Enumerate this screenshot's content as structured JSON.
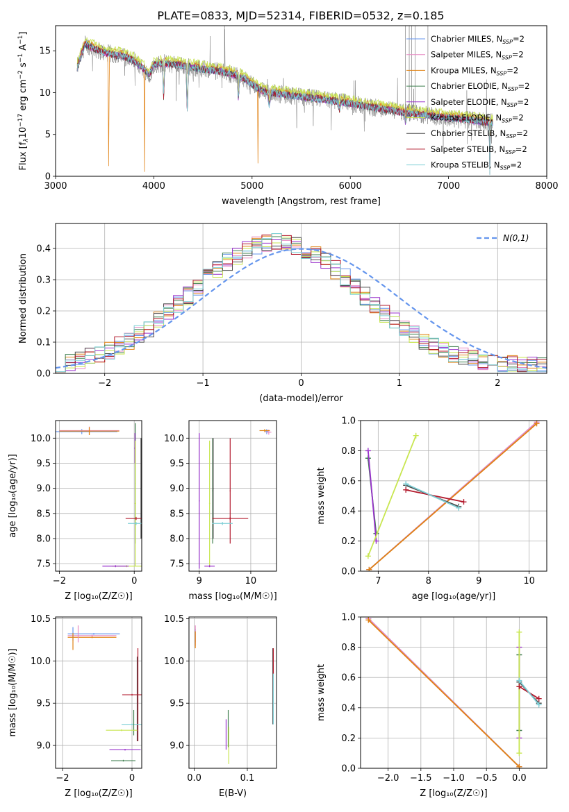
{
  "title": "PLATE=0833, MJD=52314, FIBERID=0532, z=0.185",
  "colors": {
    "Chabrier MILES": "#6495ed",
    "Salpeter MILES": "#e78ac3",
    "Kroupa MILES": "#e08214",
    "Chabrier ELODIE": "#3f7f4f",
    "Salpeter ELODIE": "#9932cc",
    "Kroupa ELODIE": "#c8e650",
    "Chabrier STELIB": "#4d4d4d",
    "Salpeter STELIB": "#b2182b",
    "Kroupa STELIB": "#7ecfd6",
    "observed": "#808080",
    "normal": "#6495ed"
  },
  "chart_data": [
    {
      "id": "spectrum",
      "type": "line",
      "xlabel": "wavelength [Angstrom, rest frame]",
      "ylabel_parts": [
        "Flux [f",
        "λ",
        "10",
        "−17",
        " erg cm",
        "−2",
        " s",
        "−1",
        " A",
        "−1",
        "]"
      ],
      "xlim": [
        3000,
        8000
      ],
      "ylim": [
        0,
        18
      ],
      "xticks": [
        3000,
        4000,
        5000,
        6000,
        7000,
        8000
      ],
      "yticks": [
        0,
        5,
        10,
        15
      ],
      "legend_position": "top-right",
      "legend": [
        {
          "name": "Chabrier MILES",
          "label": "Chabrier MILES, N",
          "sub": "SSP",
          "suffix": "=2"
        },
        {
          "name": "Salpeter MILES",
          "label": "Salpeter MILES, N",
          "sub": "SSP",
          "suffix": "=2"
        },
        {
          "name": "Kroupa MILES",
          "label": "Kroupa MILES, N",
          "sub": "SSP",
          "suffix": "=2"
        },
        {
          "name": "Chabrier ELODIE",
          "label": "Chabrier ELODIE, N",
          "sub": "SSP",
          "suffix": "=2"
        },
        {
          "name": "Salpeter ELODIE",
          "label": "Salpeter ELODIE, N",
          "sub": "SSP",
          "suffix": "=2"
        },
        {
          "name": "Kroupa ELODIE",
          "label": "Kroupa ELODIE, N",
          "sub": "SSP",
          "suffix": "=2"
        },
        {
          "name": "Chabrier STELIB",
          "label": "Chabrier STELIB, N",
          "sub": "SSP",
          "suffix": "=2"
        },
        {
          "name": "Salpeter STELIB",
          "label": "Salpeter STELIB, N",
          "sub": "SSP",
          "suffix": "=2"
        },
        {
          "name": "Kroupa STELIB",
          "label": "Kroupa STELIB, N",
          "sub": "SSP",
          "suffix": "=2"
        }
      ],
      "continuum": {
        "x": [
          3220,
          3300,
          3400,
          3500,
          3600,
          3700,
          3800,
          3900,
          3950,
          4000,
          4100,
          4200,
          4300,
          4500,
          4700,
          4900,
          5000,
          5100,
          5300,
          5500,
          5700,
          5900,
          6100,
          6300,
          6500,
          6700,
          6900,
          7100,
          7300,
          7450
        ],
        "y": [
          13.0,
          15.8,
          15.2,
          14.8,
          14.5,
          14.3,
          13.8,
          12.8,
          12.0,
          13.3,
          13.5,
          13.4,
          13.2,
          12.8,
          12.5,
          11.8,
          11.0,
          10.2,
          9.8,
          9.5,
          9.2,
          8.9,
          8.5,
          8.1,
          7.7,
          7.4,
          7.1,
          6.9,
          6.6,
          6.4
        ]
      },
      "model_dips": [
        {
          "x": 3540,
          "depth": 14.0,
          "width": 8
        },
        {
          "x": 3905,
          "depth": 12.5,
          "width": 6
        },
        {
          "x": 4100,
          "depth": 4.0,
          "width": 12
        },
        {
          "x": 4340,
          "depth": 5.0,
          "width": 14
        },
        {
          "x": 4861,
          "depth": 2.5,
          "width": 14
        },
        {
          "x": 5060,
          "depth": 9.0,
          "width": 6
        },
        {
          "x": 5175,
          "depth": 1.5,
          "width": 20
        },
        {
          "x": 5890,
          "depth": 1.0,
          "width": 14
        },
        {
          "x": 6563,
          "depth": 1.2,
          "width": 14
        },
        {
          "x": 7420,
          "depth": 6.0,
          "width": 8
        }
      ]
    },
    {
      "id": "residuals",
      "type": "histogram",
      "xlabel": "(data-model)/error",
      "ylabel": "Normed distribution",
      "xlim": [
        -2.5,
        2.5
      ],
      "ylim": [
        0,
        0.48
      ],
      "xticks": [
        -2,
        -1,
        0,
        1,
        2
      ],
      "yticks": [
        0.0,
        0.1,
        0.2,
        0.3,
        0.4
      ],
      "legend_position": "top-right",
      "normal_curve": {
        "mean": 0,
        "sigma": 1,
        "label": "N(0,1)"
      },
      "bins": {
        "start": -2.5,
        "width": 0.1
      }
    },
    {
      "id": "Z-age",
      "type": "errorbar",
      "xlabel": "Z [log₁₀(Z/Z☉)]",
      "ylabel": "age [log₁₀(age/yr)]",
      "xlim": [
        -2.1,
        0.2
      ],
      "ylim": [
        7.35,
        10.35
      ],
      "xticks": [
        -2,
        0
      ],
      "yticks": [
        7.5,
        8.0,
        8.5,
        9.0,
        9.5,
        10.0
      ],
      "points": [
        {
          "m": "Chabrier MILES",
          "x": -1.4,
          "xerr": 0.95,
          "y": 10.13,
          "yerr": 0.05
        },
        {
          "m": "Salpeter MILES",
          "x": -1.2,
          "xerr": 0.8,
          "y": 10.15,
          "yerr": 0.08
        },
        {
          "m": "Kroupa MILES",
          "x": -1.2,
          "xerr": 0.8,
          "y": 10.14,
          "yerr": 0.08
        },
        {
          "m": "Chabrier ELODIE",
          "x": 0.03,
          "xerr": 0.01,
          "y": 9.1,
          "yerr": 1.2
        },
        {
          "m": "Salpeter ELODIE",
          "x": 0.02,
          "xerr": 0.02,
          "y": 9.8,
          "yerr": 0.3
        },
        {
          "m": "Kroupa ELODIE",
          "x": 0.03,
          "xerr": 0.02,
          "y": 8.7,
          "yerr": 1.25
        },
        {
          "m": "Chabrier STELIB",
          "x": 0.18,
          "xerr": 0.01,
          "y": 9.0,
          "yerr": 1.0
        },
        {
          "m": "Salpeter STELIB",
          "x": 0.05,
          "xerr": 0.28,
          "y": 8.4,
          "yerr": 0.03
        },
        {
          "m": "Kroupa STELIB",
          "x": 0.05,
          "xerr": 0.22,
          "y": 8.3,
          "yerr": 0.03
        },
        {
          "m": "Kroupa ELODIE",
          "x": -0.2,
          "xerr": 0.4,
          "y": 7.45,
          "yerr": 0.02
        },
        {
          "m": "Salpeter ELODIE",
          "x": -0.5,
          "xerr": 0.35,
          "y": 7.45,
          "yerr": 0.02
        }
      ]
    },
    {
      "id": "mass-age",
      "type": "errorbar",
      "xlabel": "mass [log₁₀(M/M☉)]",
      "ylabel": "",
      "xlim": [
        8.8,
        10.5
      ],
      "ylim": [
        7.35,
        10.35
      ],
      "xticks": [
        9,
        10
      ],
      "yticks": [
        7.5,
        8.0,
        8.5,
        9.0,
        9.5,
        10.0
      ],
      "points": [
        {
          "m": "Chabrier MILES",
          "x": 10.31,
          "xerr": 0.03,
          "y": 10.13,
          "yerr": 0.05
        },
        {
          "m": "Salpeter MILES",
          "x": 10.35,
          "xerr": 0.05,
          "y": 10.12,
          "yerr": 0.05
        },
        {
          "m": "Kroupa MILES",
          "x": 10.27,
          "xerr": 0.1,
          "y": 10.15,
          "yerr": 0.03
        },
        {
          "m": "Salpeter ELODIE",
          "x": 9.0,
          "xerr": 0.01,
          "y": 8.75,
          "yerr": 1.35
        },
        {
          "m": "Kroupa ELODIE",
          "x": 9.2,
          "xerr": 0.01,
          "y": 8.7,
          "yerr": 1.25
        },
        {
          "m": "Chabrier ELODIE",
          "x": 9.26,
          "xerr": 0.01,
          "y": 8.95,
          "yerr": 1.05
        },
        {
          "m": "Chabrier STELIB",
          "x": 9.27,
          "xerr": 0.01,
          "y": 9.0,
          "yerr": 1.0
        },
        {
          "m": "Salpeter STELIB",
          "x": 9.6,
          "xerr": 0.35,
          "y": 8.4,
          "yerr": 0.03
        },
        {
          "m": "Salpeter STELIB",
          "x": 9.6,
          "xerr": 0.01,
          "y": 8.95,
          "yerr": 1.05
        },
        {
          "m": "Kroupa STELIB",
          "x": 9.45,
          "xerr": 0.2,
          "y": 8.3,
          "yerr": 0.03
        },
        {
          "m": "Salpeter ELODIE",
          "x": 9.2,
          "xerr": 0.1,
          "y": 7.45,
          "yerr": 0.02
        }
      ]
    },
    {
      "id": "age-weight",
      "type": "line",
      "xlabel": "age [log₁₀(age/yr)]",
      "ylabel": "mass weight",
      "xlim": [
        6.65,
        10.35
      ],
      "ylim": [
        0,
        1.0
      ],
      "xticks": [
        7,
        8,
        9,
        10
      ],
      "yticks": [
        0.0,
        0.2,
        0.4,
        0.6,
        0.8,
        1.0
      ],
      "series": [
        {
          "m": "Chabrier MILES",
          "x": [
            6.82,
            10.15
          ],
          "y": [
            0.01,
            0.99
          ]
        },
        {
          "m": "Salpeter MILES",
          "x": [
            6.82,
            10.15
          ],
          "y": [
            0.01,
            0.99
          ]
        },
        {
          "m": "Kroupa MILES",
          "x": [
            6.82,
            10.15
          ],
          "y": [
            0.01,
            0.98
          ]
        },
        {
          "m": "Chabrier ELODIE",
          "x": [
            6.8,
            6.96
          ],
          "y": [
            0.75,
            0.25
          ]
        },
        {
          "m": "Salpeter ELODIE",
          "x": [
            6.8,
            6.96
          ],
          "y": [
            0.8,
            0.2
          ]
        },
        {
          "m": "Kroupa ELODIE",
          "x": [
            6.8,
            7.75
          ],
          "y": [
            0.1,
            0.9
          ]
        },
        {
          "m": "Chabrier STELIB",
          "x": [
            7.55,
            8.6
          ],
          "y": [
            0.57,
            0.43
          ]
        },
        {
          "m": "Salpeter STELIB",
          "x": [
            7.55,
            8.7
          ],
          "y": [
            0.54,
            0.46
          ]
        },
        {
          "m": "Kroupa STELIB",
          "x": [
            7.55,
            8.6
          ],
          "y": [
            0.58,
            0.42
          ]
        }
      ]
    },
    {
      "id": "Z-mass",
      "type": "errorbar",
      "xlabel": "Z [log₁₀(Z/Z☉)]",
      "ylabel": "mass [log₁₀(M/M☉)]",
      "xlim": [
        -2.2,
        0.28
      ],
      "ylim": [
        8.73,
        10.52
      ],
      "xticks": [
        -2,
        0
      ],
      "yticks": [
        9.0,
        9.5,
        10.0,
        10.5
      ],
      "points": [
        {
          "m": "Chabrier MILES",
          "x": -1.1,
          "xerr": 0.75,
          "y": 10.32,
          "yerr": 0.01
        },
        {
          "m": "Salpeter MILES",
          "x": -1.15,
          "xerr": 0.7,
          "y": 10.3,
          "yerr": 0.01
        },
        {
          "m": "Kroupa MILES",
          "x": -1.15,
          "xerr": 0.7,
          "y": 10.28,
          "yerr": 0.01
        },
        {
          "m": "Chabrier MILES",
          "x": -1.7,
          "xerr": 0.01,
          "y": 10.32,
          "yerr": 0.08
        },
        {
          "m": "Salpeter MILES",
          "x": -1.55,
          "xerr": 0.01,
          "y": 10.32,
          "yerr": 0.1
        },
        {
          "m": "Kroupa MILES",
          "x": -1.7,
          "xerr": 0.01,
          "y": 10.23,
          "yerr": 0.1
        },
        {
          "m": "Chabrier STELIB",
          "x": 0.15,
          "xerr": 0.01,
          "y": 9.55,
          "yerr": 0.5
        },
        {
          "m": "Salpeter STELIB",
          "x": 0.17,
          "xerr": 0.01,
          "y": 9.6,
          "yerr": 0.55
        },
        {
          "m": "Salpeter STELIB",
          "x": 0.0,
          "xerr": 0.28,
          "y": 9.6,
          "yerr": 0.01
        },
        {
          "m": "Kroupa STELIB",
          "x": 0.0,
          "xerr": 0.3,
          "y": 9.25,
          "yerr": 0.01
        },
        {
          "m": "Chabrier ELODIE",
          "x": 0.05,
          "xerr": 0.01,
          "y": 9.27,
          "yerr": 0.15
        },
        {
          "m": "Kroupa ELODIE",
          "x": -0.3,
          "xerr": 0.45,
          "y": 9.18,
          "yerr": 0.01
        },
        {
          "m": "Salpeter ELODIE",
          "x": -0.2,
          "xerr": 0.45,
          "y": 8.95,
          "yerr": 0.01
        },
        {
          "m": "Chabrier ELODIE",
          "x": -0.25,
          "xerr": 0.35,
          "y": 8.82,
          "yerr": 0.01
        }
      ]
    },
    {
      "id": "EBV-mass",
      "type": "errorbar",
      "xlabel": "E(B-V)",
      "ylabel": "",
      "xlim": [
        -0.01,
        0.155
      ],
      "ylim": [
        8.73,
        10.52
      ],
      "xticks": [
        0.0,
        0.1
      ],
      "yticks": [
        9.0,
        9.5,
        10.0,
        10.5
      ],
      "points": [
        {
          "m": "Chabrier MILES",
          "x": 0.002,
          "xerr": 0.0,
          "y": 10.3,
          "yerr": 0.08
        },
        {
          "m": "Salpeter MILES",
          "x": 0.002,
          "xerr": 0.0,
          "y": 10.3,
          "yerr": 0.12
        },
        {
          "m": "Kroupa MILES",
          "x": 0.002,
          "xerr": 0.0,
          "y": 10.25,
          "yerr": 0.1
        },
        {
          "m": "Salpeter ELODIE",
          "x": 0.06,
          "xerr": 0.0,
          "y": 9.13,
          "yerr": 0.18
        },
        {
          "m": "Chabrier ELODIE",
          "x": 0.064,
          "xerr": 0.0,
          "y": 9.2,
          "yerr": 0.22
        },
        {
          "m": "Kroupa ELODIE",
          "x": 0.065,
          "xerr": 0.0,
          "y": 9.0,
          "yerr": 0.22
        },
        {
          "m": "Chabrier STELIB",
          "x": 0.148,
          "xerr": 0.0,
          "y": 9.7,
          "yerr": 0.45
        },
        {
          "m": "Salpeter STELIB",
          "x": 0.149,
          "xerr": 0.0,
          "y": 9.9,
          "yerr": 0.25
        },
        {
          "m": "Kroupa STELIB",
          "x": 0.149,
          "xerr": 0.0,
          "y": 9.55,
          "yerr": 0.3
        }
      ]
    },
    {
      "id": "Z-weight",
      "type": "line",
      "xlabel": "Z [log₁₀(Z/Z☉)]",
      "ylabel": "mass weight",
      "xlim": [
        -2.42,
        0.42
      ],
      "ylim": [
        0,
        1.0
      ],
      "xticks": [
        -2.0,
        -1.5,
        -1.0,
        -0.5,
        0.0
      ],
      "yticks": [
        0.0,
        0.2,
        0.4,
        0.6,
        0.8,
        1.0
      ],
      "series": [
        {
          "m": "Chabrier MILES",
          "x": [
            -2.3,
            0.0
          ],
          "y": [
            0.99,
            0.01
          ]
        },
        {
          "m": "Salpeter MILES",
          "x": [
            -2.3,
            0.0
          ],
          "y": [
            0.99,
            0.01
          ]
        },
        {
          "m": "Kroupa MILES",
          "x": [
            -2.3,
            0.0
          ],
          "y": [
            0.98,
            0.01
          ]
        },
        {
          "m": "Chabrier ELODIE",
          "x": [
            0.0,
            0.0
          ],
          "y": [
            0.25,
            0.75
          ]
        },
        {
          "m": "Salpeter ELODIE",
          "x": [
            0.0,
            0.0
          ],
          "y": [
            0.2,
            0.8
          ]
        },
        {
          "m": "Kroupa ELODIE",
          "x": [
            0.0,
            0.0
          ],
          "y": [
            0.1,
            0.9
          ]
        },
        {
          "m": "Chabrier STELIB",
          "x": [
            0.0,
            0.3
          ],
          "y": [
            0.57,
            0.43
          ]
        },
        {
          "m": "Salpeter STELIB",
          "x": [
            0.0,
            0.3
          ],
          "y": [
            0.54,
            0.46
          ]
        },
        {
          "m": "Kroupa STELIB",
          "x": [
            0.0,
            0.3
          ],
          "y": [
            0.58,
            0.42
          ]
        }
      ]
    }
  ]
}
